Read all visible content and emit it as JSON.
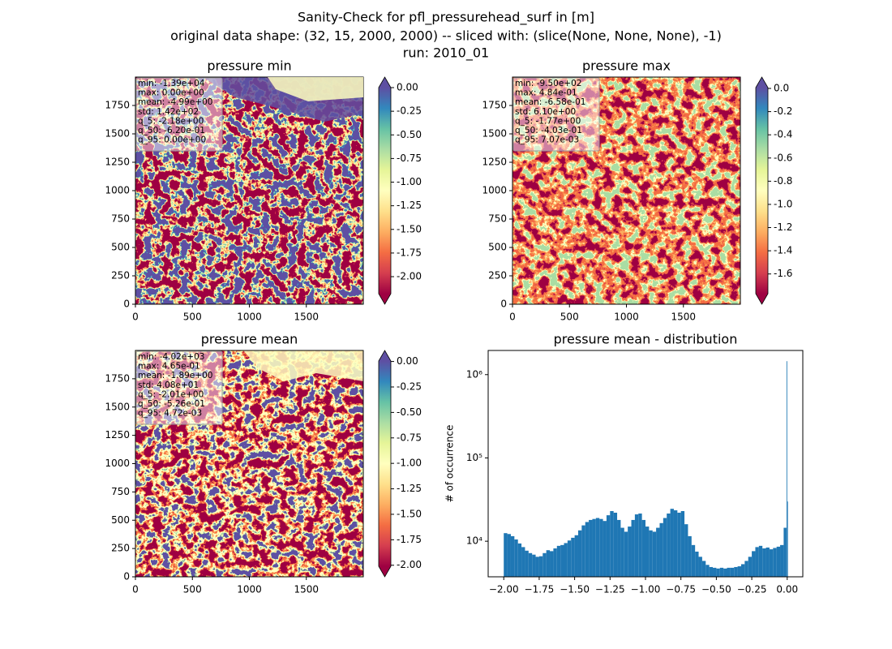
{
  "figure": {
    "title": [
      "Sanity-Check for pfl_pressurehead_surf in [m]",
      "original data shape: (32, 15, 2000, 2000) -- sliced with: (slice(None, None, None), -1)",
      "run: 2010_01"
    ]
  },
  "chart_data": [
    {
      "type": "heatmap",
      "title": "pressure min",
      "stats": [
        "min: -1.39e+04",
        "max: 0.00e+00",
        "mean: -4.99e+00",
        "std: 1.42e+02",
        "q_5: -2.18e+00",
        "q_50: -6.20e-01",
        "q_95: 0.00e+00"
      ],
      "xlim": [
        0,
        2000
      ],
      "ylim": [
        0,
        2000
      ],
      "xticks": [
        0,
        500,
        1000,
        1500
      ],
      "yticks": [
        0,
        250,
        500,
        750,
        1000,
        1250,
        1500,
        1750
      ],
      "clim": [
        -2.18,
        0
      ],
      "cticks": [
        {
          "value": 0,
          "label": "0.00"
        },
        {
          "value": -0.25,
          "label": "-0.25"
        },
        {
          "value": -0.5,
          "label": "-0.50"
        },
        {
          "value": -0.75,
          "label": "-0.75"
        },
        {
          "value": -1,
          "label": "-1.00"
        },
        {
          "value": -1.25,
          "label": "-1.25"
        },
        {
          "value": -1.5,
          "label": "-1.50"
        },
        {
          "value": -1.75,
          "label": "-1.75"
        },
        {
          "value": -2,
          "label": "-2.00"
        }
      ]
    },
    {
      "type": "heatmap",
      "title": "pressure max",
      "stats": [
        "min: -9.50e+02",
        "max: 4.84e-01",
        "mean: -6.58e-01",
        "std: 6.10e+00",
        "q_5: -1.77e+00",
        "q_50: -4.03e-01",
        "q_95: 7.07e-03"
      ],
      "xlim": [
        0,
        2000
      ],
      "ylim": [
        0,
        2000
      ],
      "xticks": [
        0,
        500,
        1000,
        1500
      ],
      "yticks": [
        0,
        250,
        500,
        750,
        1000,
        1250,
        1500,
        1750
      ],
      "clim": [
        -1.77,
        0.00707
      ],
      "cticks": [
        {
          "value": 0,
          "label": "0.0"
        },
        {
          "value": -0.2,
          "label": "-0.2"
        },
        {
          "value": -0.4,
          "label": "-0.4"
        },
        {
          "value": -0.6,
          "label": "-0.6"
        },
        {
          "value": -0.8,
          "label": "-0.8"
        },
        {
          "value": -1,
          "label": "-1.0"
        },
        {
          "value": -1.2,
          "label": "-1.2"
        },
        {
          "value": -1.4,
          "label": "-1.4"
        },
        {
          "value": -1.6,
          "label": "-1.6"
        }
      ]
    },
    {
      "type": "heatmap",
      "title": "pressure mean",
      "stats": [
        "min: -4.02e+03",
        "max: 4.65e-01",
        "mean: -1.89e+00",
        "std: 4.08e+01",
        "q_5: -2.01e+00",
        "q_50: -5.26e-01",
        "q_95: 4.72e-03"
      ],
      "xlim": [
        0,
        2000
      ],
      "ylim": [
        0,
        2000
      ],
      "xticks": [
        0,
        500,
        1000,
        1500
      ],
      "yticks": [
        0,
        250,
        500,
        750,
        1000,
        1250,
        1500,
        1750
      ],
      "clim": [
        -2.01,
        0.00472
      ],
      "cticks": [
        {
          "value": 0,
          "label": "0.00"
        },
        {
          "value": -0.25,
          "label": "-0.25"
        },
        {
          "value": -0.5,
          "label": "-0.50"
        },
        {
          "value": -0.75,
          "label": "-0.75"
        },
        {
          "value": -1,
          "label": "-1.00"
        },
        {
          "value": -1.25,
          "label": "-1.25"
        },
        {
          "value": -1.5,
          "label": "-1.50"
        },
        {
          "value": -1.75,
          "label": "-1.75"
        },
        {
          "value": -2,
          "label": "-2.00"
        }
      ]
    },
    {
      "type": "histogram",
      "title": "pressure mean - distribution",
      "y_label": "# of occurrence",
      "color": "#1f77b4",
      "log_y": true,
      "xlim": [
        -2.11,
        0.11
      ],
      "ylim": [
        3740,
        1950000
      ],
      "xticks": [
        {
          "value": -2,
          "label": "−2.00"
        },
        {
          "value": -1.75,
          "label": "−1.75"
        },
        {
          "value": -1.5,
          "label": "−1.50"
        },
        {
          "value": -1.25,
          "label": "−1.25"
        },
        {
          "value": -1,
          "label": "−1.00"
        },
        {
          "value": -0.75,
          "label": "−0.75"
        },
        {
          "value": -0.5,
          "label": "−0.50"
        },
        {
          "value": -0.25,
          "label": "−0.25"
        },
        {
          "value": 0,
          "label": "0.00"
        }
      ],
      "yticks": [
        {
          "value": 10000,
          "label": "10⁴"
        },
        {
          "value": 100000,
          "label": "10⁵"
        },
        {
          "value": 1000000,
          "label": "10⁶"
        }
      ],
      "bins": [
        -2.0,
        -1.975,
        -1.95,
        -1.925,
        -1.9,
        -1.875,
        -1.85,
        -1.825,
        -1.8,
        -1.775,
        -1.75,
        -1.725,
        -1.7,
        -1.675,
        -1.65,
        -1.625,
        -1.6,
        -1.575,
        -1.55,
        -1.525,
        -1.5,
        -1.475,
        -1.45,
        -1.425,
        -1.4,
        -1.375,
        -1.35,
        -1.325,
        -1.3,
        -1.275,
        -1.25,
        -1.225,
        -1.2,
        -1.175,
        -1.15,
        -1.125,
        -1.1,
        -1.075,
        -1.05,
        -1.025,
        -1.0,
        -0.975,
        -0.95,
        -0.925,
        -0.9,
        -0.875,
        -0.85,
        -0.825,
        -0.8,
        -0.775,
        -0.75,
        -0.725,
        -0.7,
        -0.675,
        -0.65,
        -0.625,
        -0.6,
        -0.575,
        -0.55,
        -0.525,
        -0.5,
        -0.475,
        -0.45,
        -0.425,
        -0.4,
        -0.375,
        -0.35,
        -0.325,
        -0.3,
        -0.275,
        -0.25,
        -0.225,
        -0.2,
        -0.175,
        -0.15,
        -0.125,
        -0.1,
        -0.075,
        -0.05,
        -0.025,
        -0.005,
        0.0,
        0.005
      ],
      "counts": [
        12500,
        12200,
        11500,
        10500,
        9400,
        8500,
        7700,
        7200,
        6900,
        6500,
        6600,
        7200,
        7800,
        7600,
        8200,
        8800,
        9000,
        9500,
        10200,
        11000,
        11800,
        13500,
        15500,
        17000,
        18000,
        18500,
        19000,
        18500,
        17500,
        20500,
        23000,
        22000,
        18000,
        14500,
        13000,
        15000,
        18000,
        21000,
        21500,
        18000,
        15000,
        13500,
        13000,
        14500,
        16500,
        19000,
        21500,
        24500,
        23500,
        22000,
        23000,
        16000,
        11500,
        9000,
        7500,
        6500,
        5800,
        5200,
        4900,
        4800,
        4700,
        4800,
        4700,
        4800,
        4800,
        4900,
        5000,
        5300,
        5800,
        6500,
        7600,
        8500,
        8800,
        8200,
        8400,
        8000,
        8300,
        8600,
        9000,
        14500,
        1450000,
        30000
      ]
    }
  ]
}
